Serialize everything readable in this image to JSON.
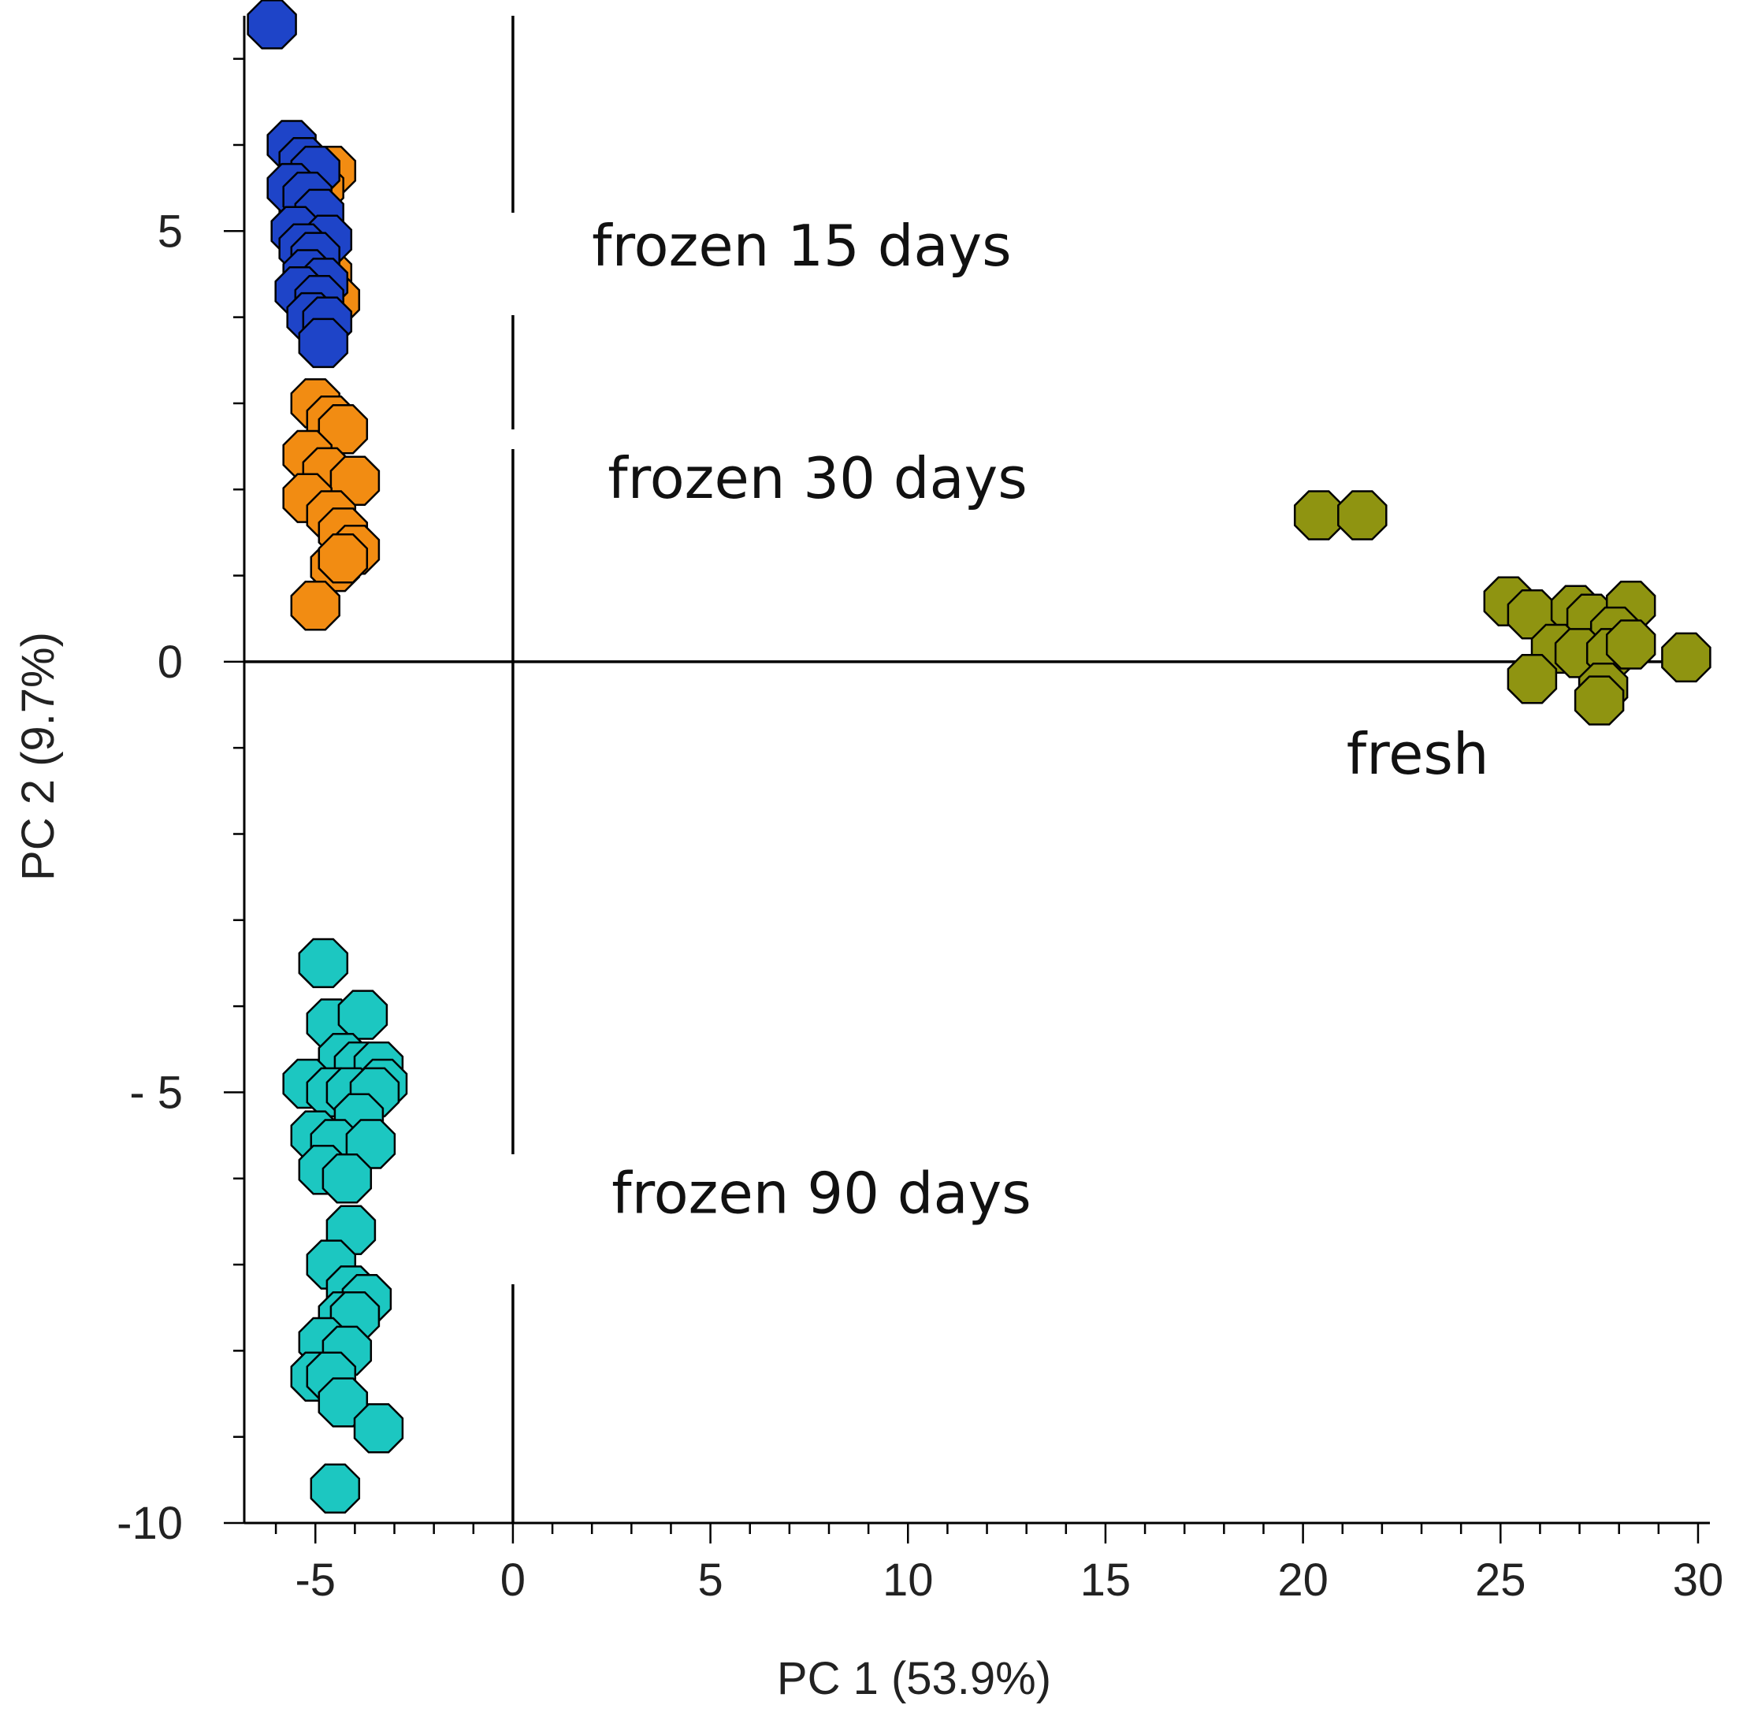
{
  "chart_data": {
    "type": "scatter",
    "title": "",
    "xlabel": "PC 1 (53.9%)",
    "ylabel": "PC 2 (9.7%)",
    "xlim": [
      -6.8,
      30.3
    ],
    "ylim": [
      -10,
      7.5
    ],
    "x_ticks": [
      -5,
      0,
      5,
      10,
      15,
      20,
      25,
      30
    ],
    "y_ticks": [
      -10,
      -5,
      0,
      5
    ],
    "x_tick_labels": [
      "-5",
      "0",
      "5",
      "10",
      "15",
      "20",
      "25",
      "30"
    ],
    "y_tick_labels": [
      "-10",
      "- 5",
      "0",
      "5"
    ],
    "grid": false,
    "legend": "none",
    "reference_lines": {
      "x": 0,
      "y": 0
    },
    "marker": "octagon",
    "series": [
      {
        "color": "#F28C12",
        "points": [
          [
            -4.6,
            5.7
          ],
          [
            -4.9,
            5.5
          ],
          [
            -5.3,
            5.2
          ],
          [
            -4.7,
            4.5
          ],
          [
            -4.5,
            4.2
          ],
          [
            -5.0,
            3.0
          ],
          [
            -4.6,
            2.8
          ],
          [
            -4.3,
            2.7
          ],
          [
            -5.2,
            2.4
          ],
          [
            -4.7,
            2.2
          ],
          [
            -4.0,
            2.1
          ],
          [
            -5.2,
            1.9
          ],
          [
            -4.6,
            1.7
          ],
          [
            -4.3,
            1.5
          ],
          [
            -4.0,
            1.3
          ],
          [
            -4.5,
            1.1
          ],
          [
            -4.3,
            1.2
          ],
          [
            -5.0,
            0.65
          ]
        ]
      },
      {
        "color": "#1E44C8",
        "points": [
          [
            -6.1,
            7.4
          ],
          [
            -5.6,
            6.0
          ],
          [
            -5.3,
            5.8
          ],
          [
            -5.0,
            5.7
          ],
          [
            -5.6,
            5.5
          ],
          [
            -5.2,
            5.4
          ],
          [
            -4.9,
            5.2
          ],
          [
            -5.5,
            5.0
          ],
          [
            -4.7,
            4.9
          ],
          [
            -5.3,
            4.8
          ],
          [
            -5.0,
            4.7
          ],
          [
            -5.2,
            4.5
          ],
          [
            -4.8,
            4.4
          ],
          [
            -5.4,
            4.3
          ],
          [
            -4.9,
            4.2
          ],
          [
            -5.1,
            4.0
          ],
          [
            -4.7,
            3.95
          ],
          [
            -4.8,
            3.7
          ]
        ]
      },
      {
        "color": "#1CC7C1",
        "points": [
          [
            -4.8,
            -3.5
          ],
          [
            -4.6,
            -4.2
          ],
          [
            -3.8,
            -4.1
          ],
          [
            -4.3,
            -4.6
          ],
          [
            -3.9,
            -4.7
          ],
          [
            -3.4,
            -4.7
          ],
          [
            -3.3,
            -4.9
          ],
          [
            -5.2,
            -4.9
          ],
          [
            -4.6,
            -5.0
          ],
          [
            -4.1,
            -5.0
          ],
          [
            -3.5,
            -5.0
          ],
          [
            -3.9,
            -5.3
          ],
          [
            -5.0,
            -5.5
          ],
          [
            -4.5,
            -5.6
          ],
          [
            -3.6,
            -5.6
          ],
          [
            -4.8,
            -5.9
          ],
          [
            -4.2,
            -6.0
          ],
          [
            -4.1,
            -6.6
          ],
          [
            -4.6,
            -7.0
          ],
          [
            -4.1,
            -7.3
          ],
          [
            -3.7,
            -7.4
          ],
          [
            -4.3,
            -7.6
          ],
          [
            -4.0,
            -7.6
          ],
          [
            -4.8,
            -7.9
          ],
          [
            -4.2,
            -8.0
          ],
          [
            -5.0,
            -8.3
          ],
          [
            -4.6,
            -8.3
          ],
          [
            -4.3,
            -8.6
          ],
          [
            -3.4,
            -8.9
          ],
          [
            -4.5,
            -9.6
          ]
        ]
      },
      {
        "color": "#8F9411",
        "points": [
          [
            20.4,
            1.7
          ],
          [
            21.5,
            1.7
          ],
          [
            25.2,
            0.7
          ],
          [
            25.8,
            0.55
          ],
          [
            26.9,
            0.6
          ],
          [
            27.3,
            0.5
          ],
          [
            28.3,
            0.65
          ],
          [
            27.9,
            0.35
          ],
          [
            26.4,
            0.15
          ],
          [
            27.0,
            0.1
          ],
          [
            27.8,
            0.1
          ],
          [
            28.3,
            0.2
          ],
          [
            29.7,
            0.05
          ],
          [
            25.8,
            -0.2
          ],
          [
            27.6,
            -0.3
          ],
          [
            27.5,
            -0.45
          ]
        ]
      }
    ],
    "annotations": [
      {
        "text": "frozen 15 days",
        "x": 2.0,
        "y": 4.6
      },
      {
        "text": "frozen 30 days",
        "x": 2.4,
        "y": 1.9
      },
      {
        "text": "fresh",
        "x": 21.1,
        "y": -1.3
      },
      {
        "text": "frozen 90 days",
        "x": 2.5,
        "y": -6.4
      }
    ]
  }
}
